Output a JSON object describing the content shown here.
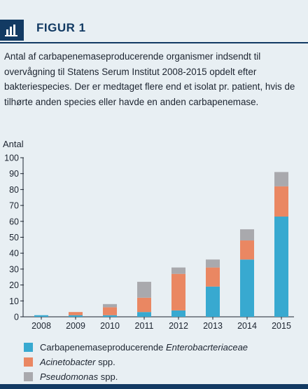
{
  "header": {
    "icon": "bar-chart-icon",
    "title": "FIGUR 1"
  },
  "caption": "Antal af carbapenemaseproducerende organismer indsendt til overvågning til Statens Serum Institut 2008-2015 opdelt efter bakteriespecies. Der er medtaget flere end et isolat pr. patient, hvis de tilhørte anden species eller havde en anden carbapenemase.",
  "colors": {
    "accent": "#123a63",
    "enterobacteriaceae": "#38a9d0",
    "acinetobacter": "#ea8762",
    "pseudomonas": "#a9a9ad"
  },
  "chart_data": {
    "type": "bar",
    "stacked": true,
    "ylabel": "Antal",
    "xlabel": "",
    "ylim": [
      0,
      100
    ],
    "yticks": [
      0,
      10,
      20,
      30,
      40,
      50,
      60,
      70,
      80,
      90,
      100
    ],
    "categories": [
      "2008",
      "2009",
      "2010",
      "2011",
      "2012",
      "2013",
      "2014",
      "2015"
    ],
    "series": [
      {
        "name": "Carbapenemaseproducerende Enterobacrteriaceae",
        "color": "#38a9d0",
        "values": [
          1,
          1,
          1,
          3,
          4,
          19,
          36,
          63
        ]
      },
      {
        "name": "Acinetobacter spp.",
        "color": "#ea8762",
        "values": [
          0,
          2,
          5,
          9,
          23,
          12,
          12,
          19
        ]
      },
      {
        "name": "Pseudomonas spp.",
        "color": "#a9a9ad",
        "values": [
          0,
          0,
          2,
          10,
          4,
          5,
          7,
          9
        ]
      }
    ],
    "grid": false,
    "legend_position": "bottom-left"
  },
  "legend": [
    {
      "prefix": "Carbapenemaseproducerende ",
      "italic": "Enterobacrteriaceae",
      "suffix": "",
      "color": "#38a9d0"
    },
    {
      "prefix": "",
      "italic": "Acinetobacter",
      "suffix": " spp.",
      "color": "#ea8762"
    },
    {
      "prefix": "",
      "italic": "Pseudomonas",
      "suffix": " spp.",
      "color": "#a9a9ad"
    }
  ]
}
